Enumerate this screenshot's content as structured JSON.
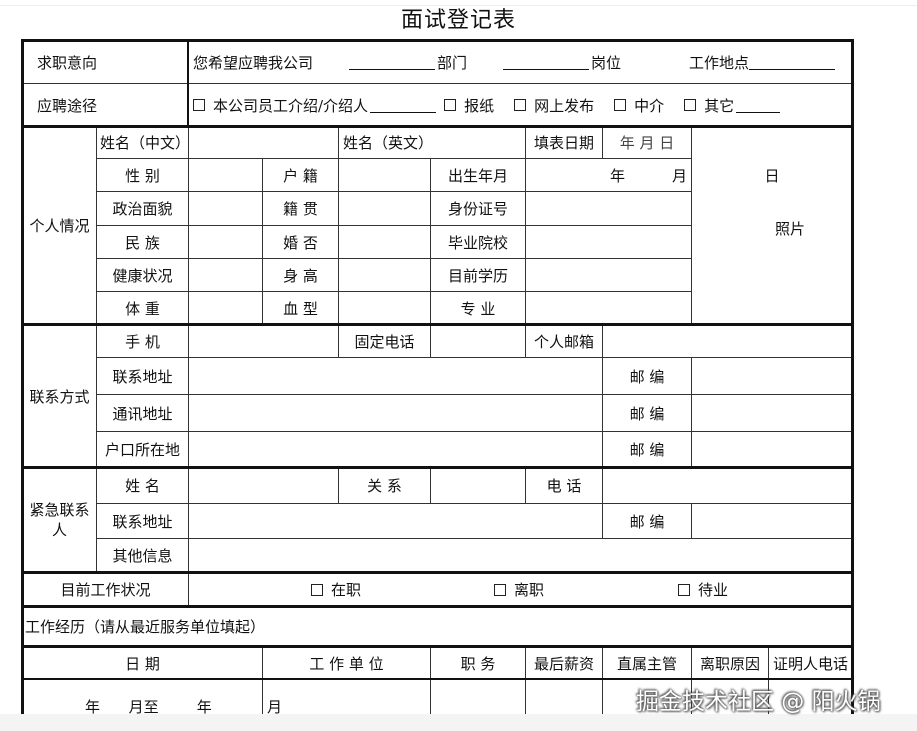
{
  "title": "面试登记表",
  "intent": {
    "label": "求职意向",
    "text": "您希望应聘我公司",
    "dept": "部门",
    "post": "岗位",
    "location": "工作地点"
  },
  "channel": {
    "label": "应聘途径",
    "options": [
      "本公司员工介绍/介绍人",
      "报纸",
      "网上发布",
      "中介",
      "其它"
    ]
  },
  "personal": {
    "section": "个人情况",
    "name_cn": "姓名（中文）",
    "name_en": "姓名（英文）",
    "fill_date": "填表日期",
    "fill_date_value": "年 月 日",
    "rows": [
      {
        "a": "性 别",
        "b": "户 籍",
        "c": "出生年月"
      },
      {
        "a": "政治面貌",
        "b": "籍 贯",
        "c": "身份证号"
      },
      {
        "a": "民 族",
        "b": "婚 否",
        "c": "毕业院校"
      },
      {
        "a": "健康状况",
        "b": "身 高",
        "c": "目前学历"
      },
      {
        "a": "体 重",
        "b": "血 型",
        "c": "专 业"
      }
    ],
    "birth_year": "年",
    "birth_month": "月",
    "photo_day": "日",
    "photo": "照片"
  },
  "contact": {
    "section": "联系方式",
    "mobile": "手 机",
    "landline": "固定电话",
    "email": "个人邮箱",
    "addresses": [
      "联系地址",
      "通讯地址",
      "户口所在地"
    ],
    "zip": "邮 编"
  },
  "emergency": {
    "section": "紧急联系人",
    "name": "姓 名",
    "relation": "关 系",
    "phone": "电 话",
    "address": "联系地址",
    "zip": "邮 编",
    "other": "其他信息"
  },
  "status": {
    "label": "目前工作状况",
    "options": [
      "在职",
      "离职",
      "待业"
    ]
  },
  "experience": {
    "title": "工作经历（请从最近服务单位填起）",
    "headers": [
      "日 期",
      "工 作 单 位",
      "职 务",
      "最后薪资",
      "直属主管",
      "离职原因",
      "证明人电话"
    ],
    "row_date": "年      月至        年",
    "row_month": "月"
  },
  "watermark": "掘金技术社区 @ 阳火锅"
}
